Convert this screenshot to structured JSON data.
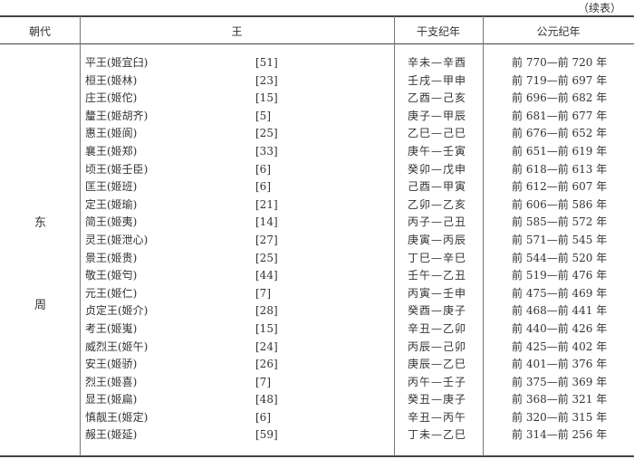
{
  "caption": "（续表）",
  "headers": [
    "朝代",
    "王",
    "干支纪年",
    "公元纪年"
  ],
  "dynasty": [
    "东",
    "周"
  ],
  "rows": [
    {
      "king": "平王(姬宜臼)",
      "reign": "[51]",
      "ganzhi": "辛未—辛酉",
      "year": "前 770—前 720 年"
    },
    {
      "king": "桓王(姬林)",
      "reign": "[23]",
      "ganzhi": "壬戌—甲申",
      "year": "前 719—前 697 年"
    },
    {
      "king": "庄王(姬佗)",
      "reign": "[15]",
      "ganzhi": "乙酉—己亥",
      "year": "前 696—前 682 年"
    },
    {
      "king": "釐王(姬胡齐)",
      "reign": "[5]",
      "ganzhi": "庚子—甲辰",
      "year": "前 681—前 677 年"
    },
    {
      "king": "惠王(姬阆)",
      "reign": "[25]",
      "ganzhi": "乙巳—己巳",
      "year": "前 676—前 652 年"
    },
    {
      "king": "襄王(姬郑)",
      "reign": "[33]",
      "ganzhi": "庚午—壬寅",
      "year": "前 651—前 619 年"
    },
    {
      "king": "顷王(姬壬臣)",
      "reign": "[6]",
      "ganzhi": "癸卯—戊申",
      "year": "前 618—前 613 年"
    },
    {
      "king": "匡王(姬班)",
      "reign": "[6]",
      "ganzhi": "己酉—甲寅",
      "year": "前 612—前 607 年"
    },
    {
      "king": "定王(姬瑜)",
      "reign": "[21]",
      "ganzhi": "乙卯—乙亥",
      "year": "前 606—前 586 年"
    },
    {
      "king": "简王(姬夷)",
      "reign": "[14]",
      "ganzhi": "丙子—己丑",
      "year": "前 585—前 572 年"
    },
    {
      "king": "灵王(姬泄心)",
      "reign": "[27]",
      "ganzhi": "庚寅—丙辰",
      "year": "前 571—前 545 年"
    },
    {
      "king": "景王(姬贵)",
      "reign": "[25]",
      "ganzhi": "丁巳—辛巳",
      "year": "前 544—前 520 年"
    },
    {
      "king": "敬王(姬匄)",
      "reign": "[44]",
      "ganzhi": "壬午—乙丑",
      "year": "前 519—前 476 年"
    },
    {
      "king": "元王(姬仁)",
      "reign": "[7]",
      "ganzhi": "丙寅—壬申",
      "year": "前 475—前 469 年"
    },
    {
      "king": "贞定王(姬介)",
      "reign": "[28]",
      "ganzhi": "癸酉—庚子",
      "year": "前 468—前 441 年"
    },
    {
      "king": "考王(姬嵬)",
      "reign": "[15]",
      "ganzhi": "辛丑—乙卯",
      "year": "前 440—前 426 年"
    },
    {
      "king": "威烈王(姬午)",
      "reign": "[24]",
      "ganzhi": "丙辰—己卯",
      "year": "前 425—前 402 年"
    },
    {
      "king": "安王(姬骄)",
      "reign": "[26]",
      "ganzhi": "庚辰—乙巳",
      "year": "前 401—前 376 年"
    },
    {
      "king": "烈王(姬喜)",
      "reign": "[7]",
      "ganzhi": "丙午—壬子",
      "year": "前 375—前 369 年"
    },
    {
      "king": "显王(姬扁)",
      "reign": "[48]",
      "ganzhi": "癸丑—庚子",
      "year": "前 368—前 321 年"
    },
    {
      "king": "慎靓王(姬定)",
      "reign": "[6]",
      "ganzhi": "辛丑—丙午",
      "year": "前 320—前 315 年"
    },
    {
      "king": "赧王(姬延)",
      "reign": "[59]",
      "ganzhi": "丁未—乙巳",
      "year": "前 314—前 256 年"
    }
  ]
}
